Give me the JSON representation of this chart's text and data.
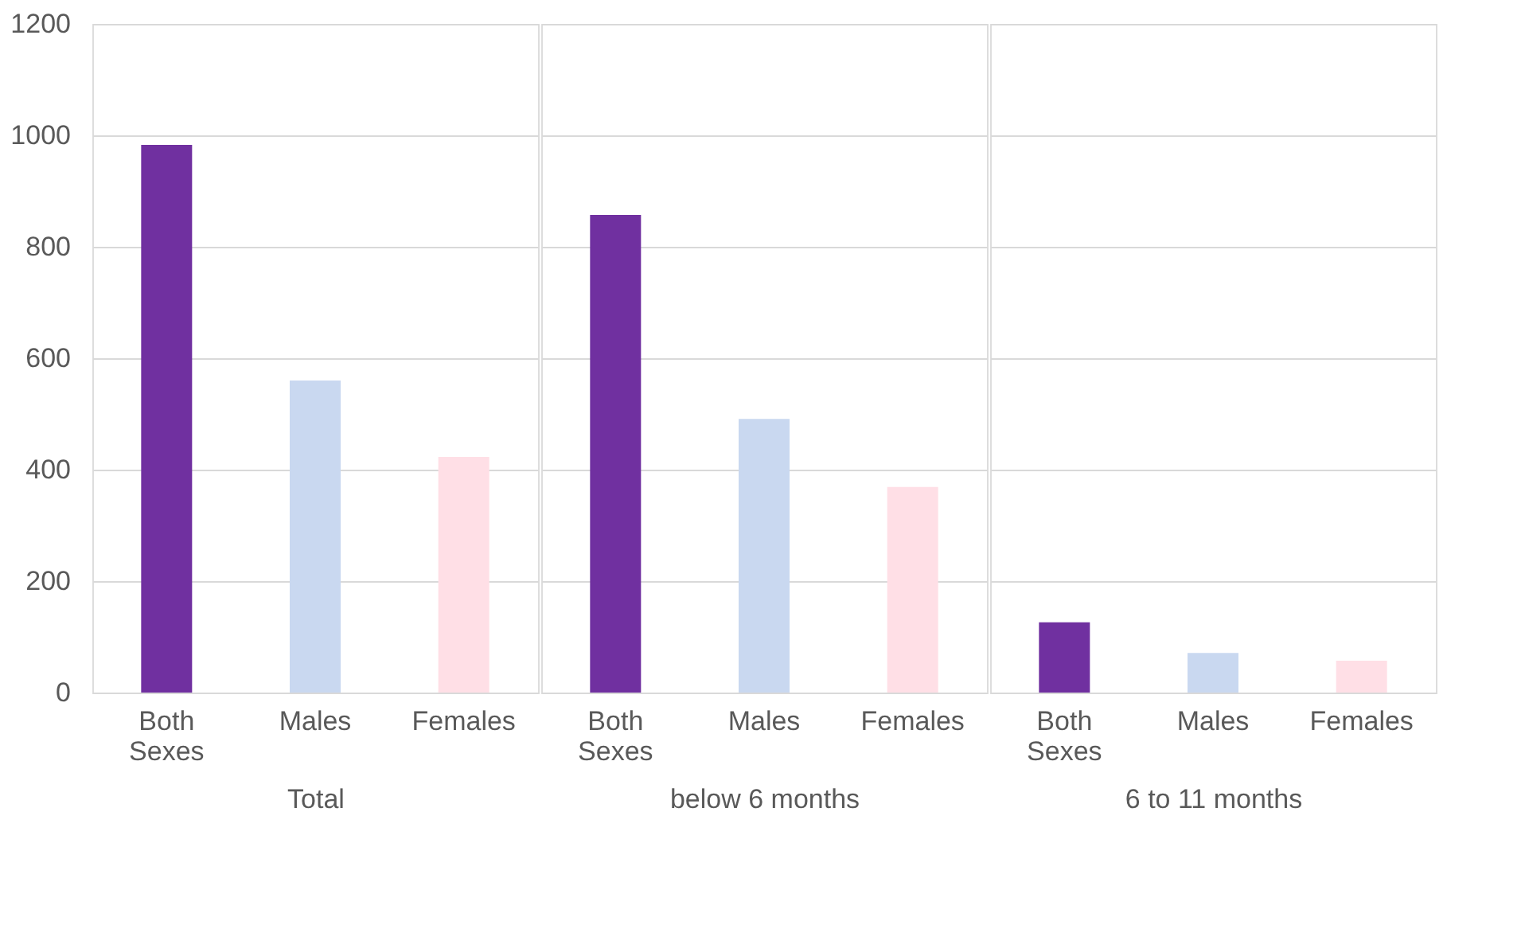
{
  "chart_data": [
    {
      "type": "bar",
      "categories": [
        "Both Sexes",
        "Males",
        "Females"
      ],
      "values": [
        983,
        560,
        423
      ],
      "colors": [
        "#7030a0",
        "#c9d8f0",
        "#ffdfe6"
      ],
      "xlabel": "Total",
      "ylim": [
        0,
        1200
      ],
      "yticks": [
        0,
        200,
        400,
        600,
        800,
        1000,
        1200
      ],
      "grid": "y"
    },
    {
      "type": "bar",
      "categories": [
        "Both Sexes",
        "Males",
        "Females"
      ],
      "values": [
        857,
        491,
        369
      ],
      "colors": [
        "#7030a0",
        "#c9d8f0",
        "#ffdfe6"
      ],
      "xlabel": "below 6 months",
      "ylim": [
        0,
        1200
      ],
      "yticks": [
        0,
        200,
        400,
        600,
        800,
        1000,
        1200
      ],
      "grid": "y",
      "tick_labels": "x"
    },
    {
      "type": "bar",
      "categories": [
        "Both Sexes",
        "Males",
        "Females"
      ],
      "values": [
        126,
        71,
        57
      ],
      "colors": [
        "#7030a0",
        "#c9d8f0",
        "#ffdfe6"
      ],
      "xlabel": "6 to 11 months",
      "ylim": [
        0,
        1200
      ],
      "yticks": [
        0,
        200,
        400,
        600,
        800,
        1000,
        1200
      ],
      "grid": "y",
      "tick_labels": "x"
    }
  ]
}
